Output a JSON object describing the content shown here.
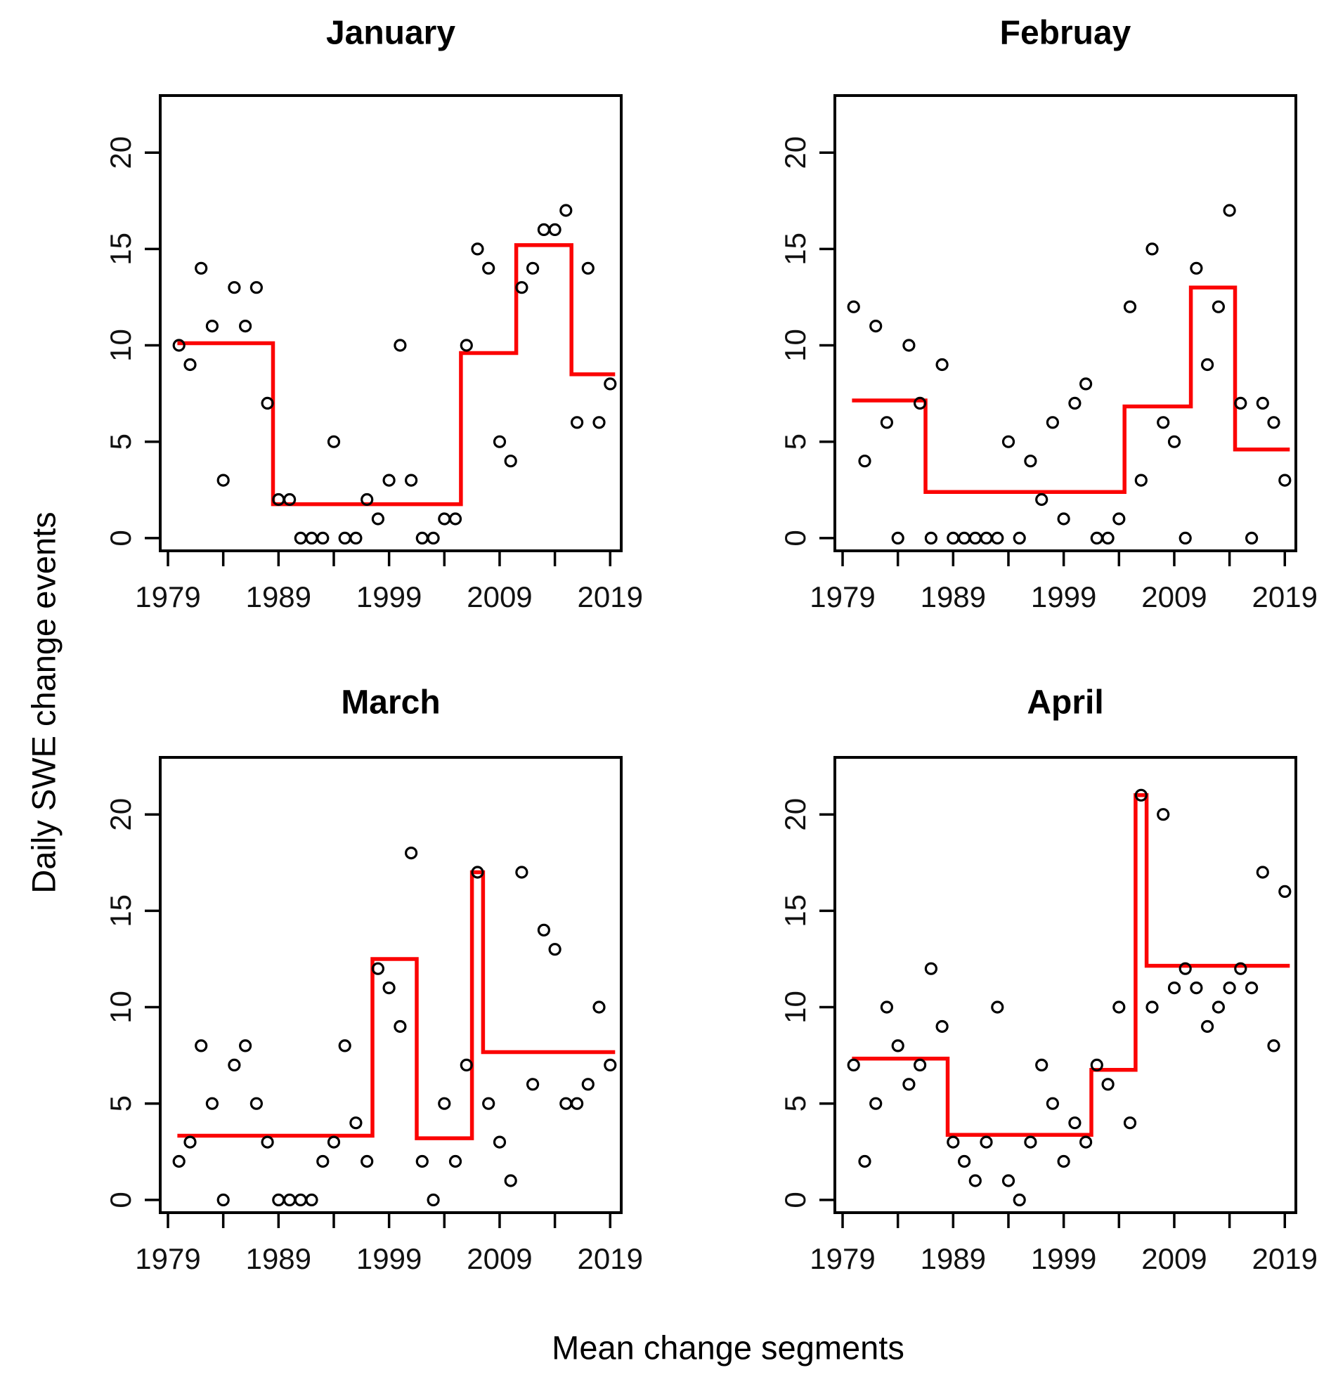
{
  "figure": {
    "y_axis_label": "Daily SWE change events",
    "x_axis_label": "Mean change segments",
    "x_ticks": [
      1979,
      1984,
      1989,
      1994,
      1999,
      2004,
      2009,
      2014,
      2019
    ],
    "x_labeled_ticks": [
      "1979",
      "1989",
      "1999",
      "2009",
      "2019"
    ],
    "y_ticks": [
      "0",
      "5",
      "10",
      "15",
      "20"
    ],
    "colors": {
      "segment_line": "#fb0404",
      "point_stroke": "#000000",
      "axis": "#000000",
      "background": "#ffffff",
      "text": "#111111"
    }
  },
  "chart_data": [
    {
      "type": "scatter+step",
      "title": "January",
      "xlabel": "Mean change segments",
      "ylabel": "Daily SWE change events",
      "xlim": [
        1978.3,
        2020.0
      ],
      "ylim": [
        -0.66,
        22.96
      ],
      "grid": false,
      "years": [
        1980,
        1981,
        1982,
        1983,
        1984,
        1985,
        1986,
        1987,
        1988,
        1989,
        1990,
        1991,
        1992,
        1993,
        1994,
        1995,
        1996,
        1997,
        1998,
        1999,
        2000,
        2001,
        2002,
        2003,
        2004,
        2005,
        2006,
        2007,
        2008,
        2009,
        2010,
        2011,
        2012,
        2013,
        2014,
        2015,
        2016,
        2017,
        2018,
        2019
      ],
      "values": [
        10,
        9,
        14,
        11,
        3,
        13,
        11,
        13,
        7,
        2,
        2,
        0,
        0,
        0,
        5,
        0,
        0,
        2,
        1,
        3,
        10,
        3,
        0,
        0,
        1,
        1,
        10,
        15,
        14,
        5,
        4,
        13,
        14,
        16,
        16,
        17,
        6,
        14,
        6,
        8
      ],
      "segments": [
        {
          "from": 1980,
          "to": 1988,
          "mean": 10.11
        },
        {
          "from": 1989,
          "to": 2005,
          "mean": 1.76
        },
        {
          "from": 2006,
          "to": 2010,
          "mean": 9.6
        },
        {
          "from": 2011,
          "to": 2015,
          "mean": 15.2
        },
        {
          "from": 2016,
          "to": 2019,
          "mean": 8.5
        }
      ]
    },
    {
      "type": "scatter+step",
      "title": "Februay",
      "xlabel": "Mean change segments",
      "ylabel": "Daily SWE change events",
      "xlim": [
        1978.3,
        2020.0
      ],
      "ylim": [
        -0.66,
        22.96
      ],
      "grid": false,
      "years": [
        1980,
        1981,
        1982,
        1983,
        1984,
        1985,
        1986,
        1987,
        1988,
        1989,
        1990,
        1991,
        1992,
        1993,
        1994,
        1995,
        1996,
        1997,
        1998,
        1999,
        2000,
        2001,
        2002,
        2003,
        2004,
        2005,
        2006,
        2007,
        2008,
        2009,
        2010,
        2011,
        2012,
        2013,
        2014,
        2015,
        2016,
        2017,
        2018,
        2019
      ],
      "values": [
        12,
        4,
        11,
        6,
        0,
        10,
        7,
        0,
        9,
        0,
        0,
        0,
        0,
        0,
        5,
        0,
        4,
        2,
        6,
        1,
        7,
        8,
        0,
        0,
        1,
        12,
        3,
        15,
        6,
        5,
        0,
        14,
        9,
        12,
        17,
        7,
        0,
        7,
        6,
        3
      ],
      "segments": [
        {
          "from": 1980,
          "to": 1986,
          "mean": 7.14
        },
        {
          "from": 1987,
          "to": 2004,
          "mean": 2.39
        },
        {
          "from": 2005,
          "to": 2010,
          "mean": 6.83
        },
        {
          "from": 2011,
          "to": 2014,
          "mean": 13.0
        },
        {
          "from": 2015,
          "to": 2019,
          "mean": 4.6
        }
      ]
    },
    {
      "type": "scatter+step",
      "title": "March",
      "xlabel": "Mean change segments",
      "ylabel": "Daily SWE change events",
      "xlim": [
        1978.3,
        2020.0
      ],
      "ylim": [
        -0.66,
        22.96
      ],
      "grid": false,
      "years": [
        1980,
        1981,
        1982,
        1983,
        1984,
        1985,
        1986,
        1987,
        1988,
        1989,
        1990,
        1991,
        1992,
        1993,
        1994,
        1995,
        1996,
        1997,
        1998,
        1999,
        2000,
        2001,
        2002,
        2003,
        2004,
        2005,
        2006,
        2007,
        2008,
        2009,
        2010,
        2011,
        2012,
        2013,
        2014,
        2015,
        2016,
        2017,
        2018,
        2019
      ],
      "values": [
        2,
        3,
        8,
        5,
        0,
        7,
        8,
        5,
        3,
        0,
        0,
        0,
        0,
        2,
        3,
        8,
        4,
        2,
        12,
        11,
        9,
        18,
        2,
        0,
        5,
        2,
        7,
        17,
        5,
        3,
        1,
        17,
        6,
        14,
        13,
        5,
        5,
        6,
        10,
        7
      ],
      "segments": [
        {
          "from": 1980,
          "to": 1997,
          "mean": 3.33
        },
        {
          "from": 1998,
          "to": 2001,
          "mean": 12.5
        },
        {
          "from": 2002,
          "to": 2006,
          "mean": 3.2
        },
        {
          "from": 2007,
          "to": 2007,
          "mean": 17.0
        },
        {
          "from": 2008,
          "to": 2019,
          "mean": 7.67
        }
      ]
    },
    {
      "type": "scatter+step",
      "title": "April",
      "xlabel": "Mean change segments",
      "ylabel": "Daily SWE change events",
      "xlim": [
        1978.3,
        2020.0
      ],
      "ylim": [
        -0.66,
        22.96
      ],
      "grid": false,
      "years": [
        1980,
        1981,
        1982,
        1983,
        1984,
        1985,
        1986,
        1987,
        1988,
        1989,
        1990,
        1991,
        1992,
        1993,
        1994,
        1995,
        1996,
        1997,
        1998,
        1999,
        2000,
        2001,
        2002,
        2003,
        2004,
        2005,
        2006,
        2007,
        2008,
        2009,
        2010,
        2011,
        2012,
        2013,
        2014,
        2015,
        2016,
        2017,
        2018,
        2019
      ],
      "values": [
        7,
        2,
        5,
        10,
        8,
        6,
        7,
        12,
        9,
        3,
        2,
        1,
        3,
        10,
        1,
        0,
        3,
        7,
        5,
        2,
        4,
        3,
        7,
        6,
        10,
        4,
        21,
        10,
        20,
        11,
        12,
        11,
        9,
        10,
        11,
        12,
        11,
        17,
        8,
        16
      ],
      "segments": [
        {
          "from": 1980,
          "to": 1988,
          "mean": 7.33
        },
        {
          "from": 1989,
          "to": 2001,
          "mean": 3.38
        },
        {
          "from": 2002,
          "to": 2005,
          "mean": 6.75
        },
        {
          "from": 2006,
          "to": 2006,
          "mean": 21.0
        },
        {
          "from": 2007,
          "to": 2019,
          "mean": 12.15
        }
      ]
    }
  ]
}
